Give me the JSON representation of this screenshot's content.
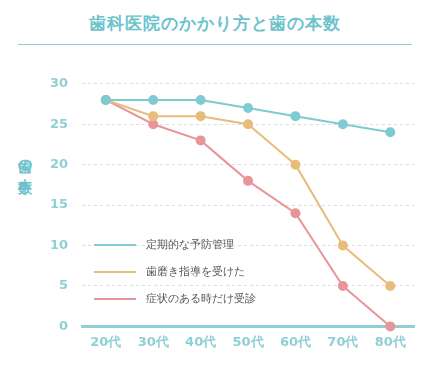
{
  "chart_data": {
    "type": "line",
    "title": "歯科医院のかかり方と歯の本数",
    "y_label": "歯の本数",
    "categories": [
      "20代",
      "30代",
      "40代",
      "50代",
      "60代",
      "70代",
      "80代"
    ],
    "series": [
      {
        "name": "定期的な予防管理",
        "color": "#7ecbd3",
        "values": [
          28,
          28,
          28,
          27,
          26,
          25,
          24
        ]
      },
      {
        "name": "歯磨き指導を受けた",
        "color": "#e8bc7a",
        "values": [
          28,
          26,
          26,
          25,
          20,
          10,
          5
        ]
      },
      {
        "name": "症状のある時だけ受診",
        "color": "#e8959a",
        "values": [
          28,
          25,
          23,
          18,
          14,
          5,
          0
        ]
      }
    ],
    "ylim": [
      0,
      30
    ],
    "yticks": [
      0,
      5,
      10,
      15,
      20,
      25,
      30
    ],
    "grid": true,
    "legend": "lower left",
    "marker": "circle"
  }
}
